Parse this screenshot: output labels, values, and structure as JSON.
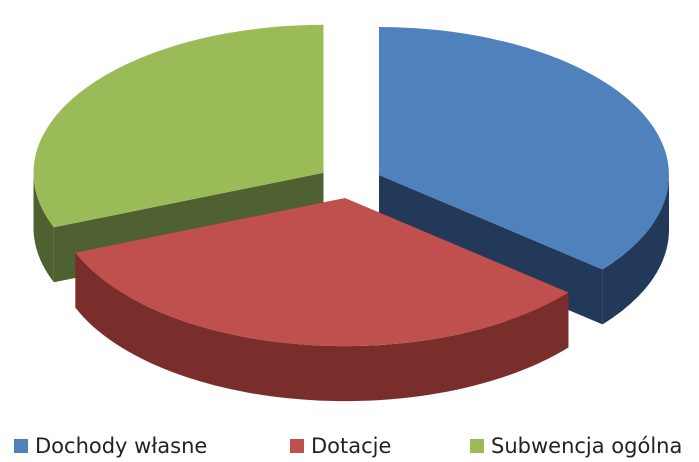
{
  "chart_data": {
    "type": "pie3d",
    "categories": [
      "Dochody własne",
      "Dotacje",
      "Subwencja ogólna"
    ],
    "values": [
      36,
      33,
      31
    ],
    "colors": [
      "#4f81bd",
      "#c0504d",
      "#9bbb59"
    ],
    "side_colors": [
      "#23395a",
      "#7a2e2c",
      "#4f6130"
    ],
    "legend": "bottom"
  }
}
